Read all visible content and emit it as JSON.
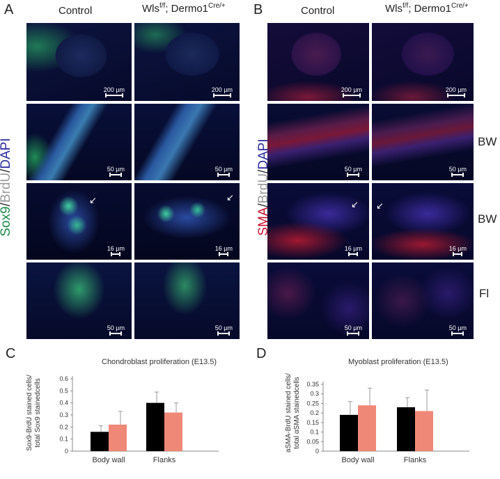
{
  "panels": {
    "A": {
      "letter": "A",
      "col_control": "Control",
      "col_mutant_base": "Wls",
      "col_mutant_sup1": "f/f",
      "col_mutant_mid": "; Dermo1",
      "col_mutant_sup2": "Cre/+",
      "stain": [
        {
          "text": "Sox9",
          "color": "#1a8a4a"
        },
        {
          "text": "/",
          "color": "#333333"
        },
        {
          "text": "BrdU",
          "color": "#9a9a9a"
        },
        {
          "text": "/",
          "color": "#333333"
        },
        {
          "text": "DAPI",
          "color": "#2a2aa0"
        }
      ],
      "scalebars": [
        "200 µm",
        "200 µm",
        "50 µm",
        "50 µm",
        "16 µm",
        "16 µm",
        "50 µm",
        "50 µm"
      ]
    },
    "B": {
      "letter": "B",
      "col_control": "Control",
      "col_mutant_base": "Wls",
      "col_mutant_sup1": "f/f",
      "col_mutant_mid": "; Dermo1",
      "col_mutant_sup2": "Cre/+",
      "stain": [
        {
          "text": "SMA",
          "color": "#c8102e"
        },
        {
          "text": "/",
          "color": "#333333"
        },
        {
          "text": "BrdU",
          "color": "#9a9a9a"
        },
        {
          "text": "/",
          "color": "#333333"
        },
        {
          "text": "DAPI",
          "color": "#2a2aa0"
        }
      ],
      "row_labels": [
        "BW",
        "BW",
        "Fl"
      ],
      "scalebars": [
        "200 µm",
        "200 µm",
        "50 µm",
        "50 µm",
        "16 µm",
        "16 µm",
        "50 µm",
        "50 µm"
      ]
    }
  },
  "chart_data": [
    {
      "panel": "C",
      "type": "bar",
      "title": "Chondroblast proliferation (E13.5)",
      "ylabel_line1": "Sox9-BrdU stained cells/",
      "ylabel_line2": "total Sox9 stainedcells",
      "categories": [
        "Body wall",
        "Flanks"
      ],
      "ylim": [
        0,
        0.6
      ],
      "yticks": [
        "0",
        "0.1",
        "0.2",
        "0.3",
        "0.4",
        "0.5",
        "0.6"
      ],
      "ytick_values": [
        0,
        0.1,
        0.2,
        0.3,
        0.4,
        0.5,
        0.6
      ],
      "series": [
        {
          "values": [
            0.16,
            0.4
          ],
          "errors": [
            0.05,
            0.09
          ],
          "color": "#000000"
        },
        {
          "values": [
            0.22,
            0.32
          ],
          "errors": [
            0.11,
            0.08
          ],
          "color": "#f08878"
        }
      ]
    },
    {
      "panel": "D",
      "type": "bar",
      "title": "Myoblast proliferation (E13.5)",
      "ylabel_line1": "aSMA-BrdU stained cells/",
      "ylabel_line2": "total αSMA stainedcells",
      "categories": [
        "Body wall",
        "Flanks"
      ],
      "ylim": [
        0,
        0.35
      ],
      "yticks": [
        "0",
        "0.05",
        "0.1",
        "0.15",
        "0.2",
        "0.25",
        "0.3",
        "0.35"
      ],
      "ytick_values": [
        0,
        0.05,
        0.1,
        0.15,
        0.2,
        0.25,
        0.3,
        0.35
      ],
      "series": [
        {
          "values": [
            0.19,
            0.23
          ],
          "errors": [
            0.07,
            0.05
          ],
          "color": "#000000"
        },
        {
          "values": [
            0.24,
            0.21
          ],
          "errors": [
            0.09,
            0.11
          ],
          "color": "#f08878"
        }
      ]
    }
  ]
}
